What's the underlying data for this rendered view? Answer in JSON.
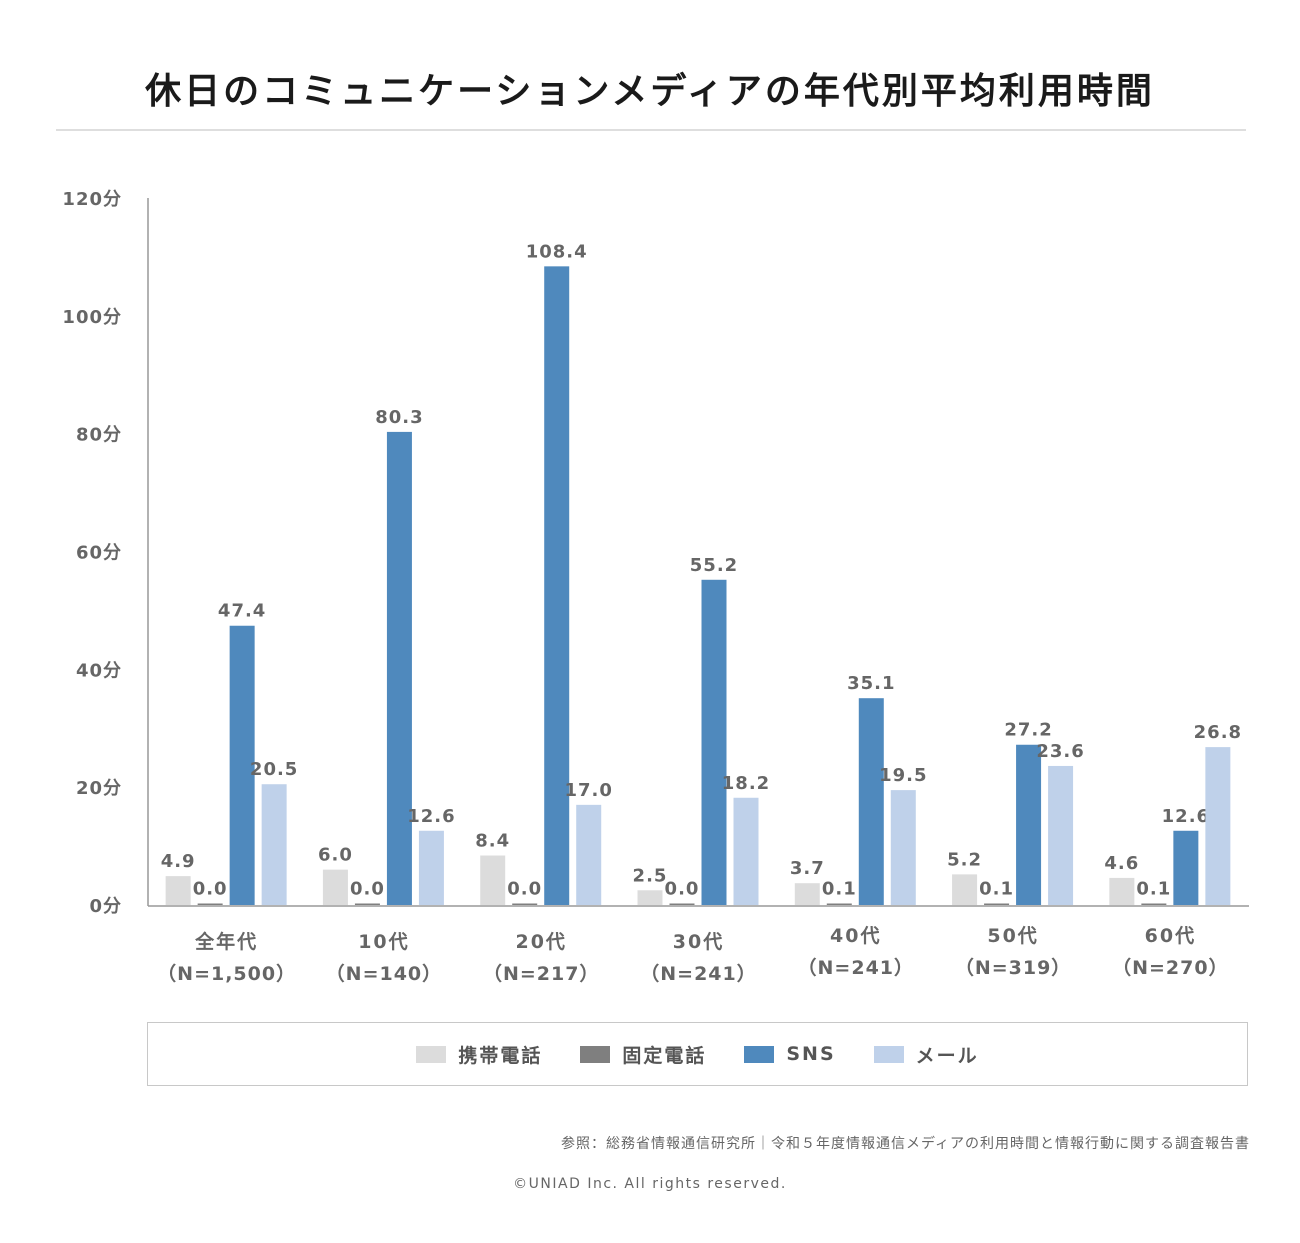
{
  "title": "休日のコミュニケーションメディアの年代別平均利用時間",
  "source": "参照：総務省情報通信研究所｜令和５年度情報通信メディアの利用時間と情報行動に関する調査報告書",
  "copyright": "©UNIAD Inc. All rights reserved.",
  "chart_data": {
    "type": "bar",
    "title": "休日のコミュニケーションメディアの年代別平均利用時間",
    "xlabel": "",
    "ylabel": "",
    "ylim": [
      0,
      120
    ],
    "yticks": [
      {
        "value": 0,
        "label": "0分"
      },
      {
        "value": 20,
        "label": "20分"
      },
      {
        "value": 40,
        "label": "40分"
      },
      {
        "value": 60,
        "label": "60分"
      },
      {
        "value": 80,
        "label": "80分"
      },
      {
        "value": 100,
        "label": "100分"
      },
      {
        "value": 120,
        "label": "120分"
      }
    ],
    "categories": [
      {
        "name": "全年代",
        "n": "（N=1,500）"
      },
      {
        "name": "10代",
        "n": "（N=140）"
      },
      {
        "name": "20代",
        "n": "（N=217）"
      },
      {
        "name": "30代",
        "n": "（N=241）"
      },
      {
        "name": "40代",
        "n": "（N=241）"
      },
      {
        "name": "50代",
        "n": "（N=319）"
      },
      {
        "name": "60代",
        "n": "（N=270）"
      }
    ],
    "series": [
      {
        "name": "携帯電話",
        "color": "#dcdcdc",
        "values": [
          4.9,
          6.0,
          8.4,
          2.5,
          3.7,
          5.2,
          4.6
        ]
      },
      {
        "name": "固定電話",
        "color": "#7f7f7f",
        "values": [
          0.0,
          0.0,
          0.0,
          0.0,
          0.1,
          0.1,
          0.1
        ]
      },
      {
        "name": "SNS",
        "color": "#4f89bd",
        "values": [
          47.4,
          80.3,
          108.4,
          55.2,
          35.1,
          27.2,
          12.6
        ]
      },
      {
        "name": "メール",
        "color": "#bfd1ea",
        "values": [
          20.5,
          12.6,
          17.0,
          18.2,
          19.5,
          23.6,
          26.8
        ]
      }
    ],
    "grid": false,
    "legend": "bottom"
  }
}
